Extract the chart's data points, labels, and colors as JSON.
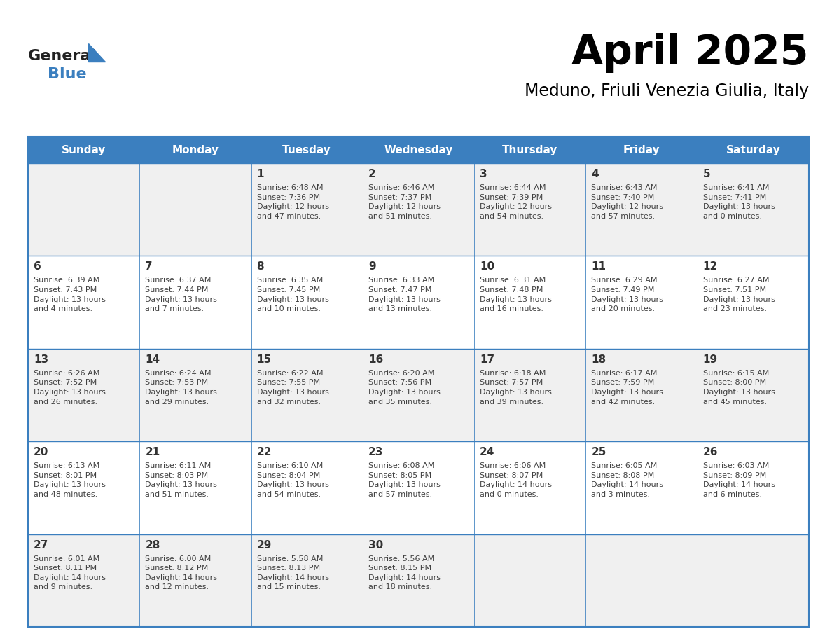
{
  "title": "April 2025",
  "subtitle": "Meduno, Friuli Venezia Giulia, Italy",
  "days_of_week": [
    "Sunday",
    "Monday",
    "Tuesday",
    "Wednesday",
    "Thursday",
    "Friday",
    "Saturday"
  ],
  "header_bg": "#3B7FBF",
  "header_text": "#FFFFFF",
  "cell_bg_odd": "#F0F0F0",
  "cell_bg_even": "#FFFFFF",
  "border_color": "#3B7FBF",
  "text_color": "#404040",
  "day_number_color": "#333333",
  "logo_general_color": "#222222",
  "logo_blue_color": "#3B7FBF",
  "logo_triangle_color": "#3B7FBF",
  "calendar": [
    [
      {
        "day": null,
        "info": ""
      },
      {
        "day": null,
        "info": ""
      },
      {
        "day": 1,
        "info": "Sunrise: 6:48 AM\nSunset: 7:36 PM\nDaylight: 12 hours\nand 47 minutes."
      },
      {
        "day": 2,
        "info": "Sunrise: 6:46 AM\nSunset: 7:37 PM\nDaylight: 12 hours\nand 51 minutes."
      },
      {
        "day": 3,
        "info": "Sunrise: 6:44 AM\nSunset: 7:39 PM\nDaylight: 12 hours\nand 54 minutes."
      },
      {
        "day": 4,
        "info": "Sunrise: 6:43 AM\nSunset: 7:40 PM\nDaylight: 12 hours\nand 57 minutes."
      },
      {
        "day": 5,
        "info": "Sunrise: 6:41 AM\nSunset: 7:41 PM\nDaylight: 13 hours\nand 0 minutes."
      }
    ],
    [
      {
        "day": 6,
        "info": "Sunrise: 6:39 AM\nSunset: 7:43 PM\nDaylight: 13 hours\nand 4 minutes."
      },
      {
        "day": 7,
        "info": "Sunrise: 6:37 AM\nSunset: 7:44 PM\nDaylight: 13 hours\nand 7 minutes."
      },
      {
        "day": 8,
        "info": "Sunrise: 6:35 AM\nSunset: 7:45 PM\nDaylight: 13 hours\nand 10 minutes."
      },
      {
        "day": 9,
        "info": "Sunrise: 6:33 AM\nSunset: 7:47 PM\nDaylight: 13 hours\nand 13 minutes."
      },
      {
        "day": 10,
        "info": "Sunrise: 6:31 AM\nSunset: 7:48 PM\nDaylight: 13 hours\nand 16 minutes."
      },
      {
        "day": 11,
        "info": "Sunrise: 6:29 AM\nSunset: 7:49 PM\nDaylight: 13 hours\nand 20 minutes."
      },
      {
        "day": 12,
        "info": "Sunrise: 6:27 AM\nSunset: 7:51 PM\nDaylight: 13 hours\nand 23 minutes."
      }
    ],
    [
      {
        "day": 13,
        "info": "Sunrise: 6:26 AM\nSunset: 7:52 PM\nDaylight: 13 hours\nand 26 minutes."
      },
      {
        "day": 14,
        "info": "Sunrise: 6:24 AM\nSunset: 7:53 PM\nDaylight: 13 hours\nand 29 minutes."
      },
      {
        "day": 15,
        "info": "Sunrise: 6:22 AM\nSunset: 7:55 PM\nDaylight: 13 hours\nand 32 minutes."
      },
      {
        "day": 16,
        "info": "Sunrise: 6:20 AM\nSunset: 7:56 PM\nDaylight: 13 hours\nand 35 minutes."
      },
      {
        "day": 17,
        "info": "Sunrise: 6:18 AM\nSunset: 7:57 PM\nDaylight: 13 hours\nand 39 minutes."
      },
      {
        "day": 18,
        "info": "Sunrise: 6:17 AM\nSunset: 7:59 PM\nDaylight: 13 hours\nand 42 minutes."
      },
      {
        "day": 19,
        "info": "Sunrise: 6:15 AM\nSunset: 8:00 PM\nDaylight: 13 hours\nand 45 minutes."
      }
    ],
    [
      {
        "day": 20,
        "info": "Sunrise: 6:13 AM\nSunset: 8:01 PM\nDaylight: 13 hours\nand 48 minutes."
      },
      {
        "day": 21,
        "info": "Sunrise: 6:11 AM\nSunset: 8:03 PM\nDaylight: 13 hours\nand 51 minutes."
      },
      {
        "day": 22,
        "info": "Sunrise: 6:10 AM\nSunset: 8:04 PM\nDaylight: 13 hours\nand 54 minutes."
      },
      {
        "day": 23,
        "info": "Sunrise: 6:08 AM\nSunset: 8:05 PM\nDaylight: 13 hours\nand 57 minutes."
      },
      {
        "day": 24,
        "info": "Sunrise: 6:06 AM\nSunset: 8:07 PM\nDaylight: 14 hours\nand 0 minutes."
      },
      {
        "day": 25,
        "info": "Sunrise: 6:05 AM\nSunset: 8:08 PM\nDaylight: 14 hours\nand 3 minutes."
      },
      {
        "day": 26,
        "info": "Sunrise: 6:03 AM\nSunset: 8:09 PM\nDaylight: 14 hours\nand 6 minutes."
      }
    ],
    [
      {
        "day": 27,
        "info": "Sunrise: 6:01 AM\nSunset: 8:11 PM\nDaylight: 14 hours\nand 9 minutes."
      },
      {
        "day": 28,
        "info": "Sunrise: 6:00 AM\nSunset: 8:12 PM\nDaylight: 14 hours\nand 12 minutes."
      },
      {
        "day": 29,
        "info": "Sunrise: 5:58 AM\nSunset: 8:13 PM\nDaylight: 14 hours\nand 15 minutes."
      },
      {
        "day": 30,
        "info": "Sunrise: 5:56 AM\nSunset: 8:15 PM\nDaylight: 14 hours\nand 18 minutes."
      },
      {
        "day": null,
        "info": ""
      },
      {
        "day": null,
        "info": ""
      },
      {
        "day": null,
        "info": ""
      }
    ]
  ]
}
